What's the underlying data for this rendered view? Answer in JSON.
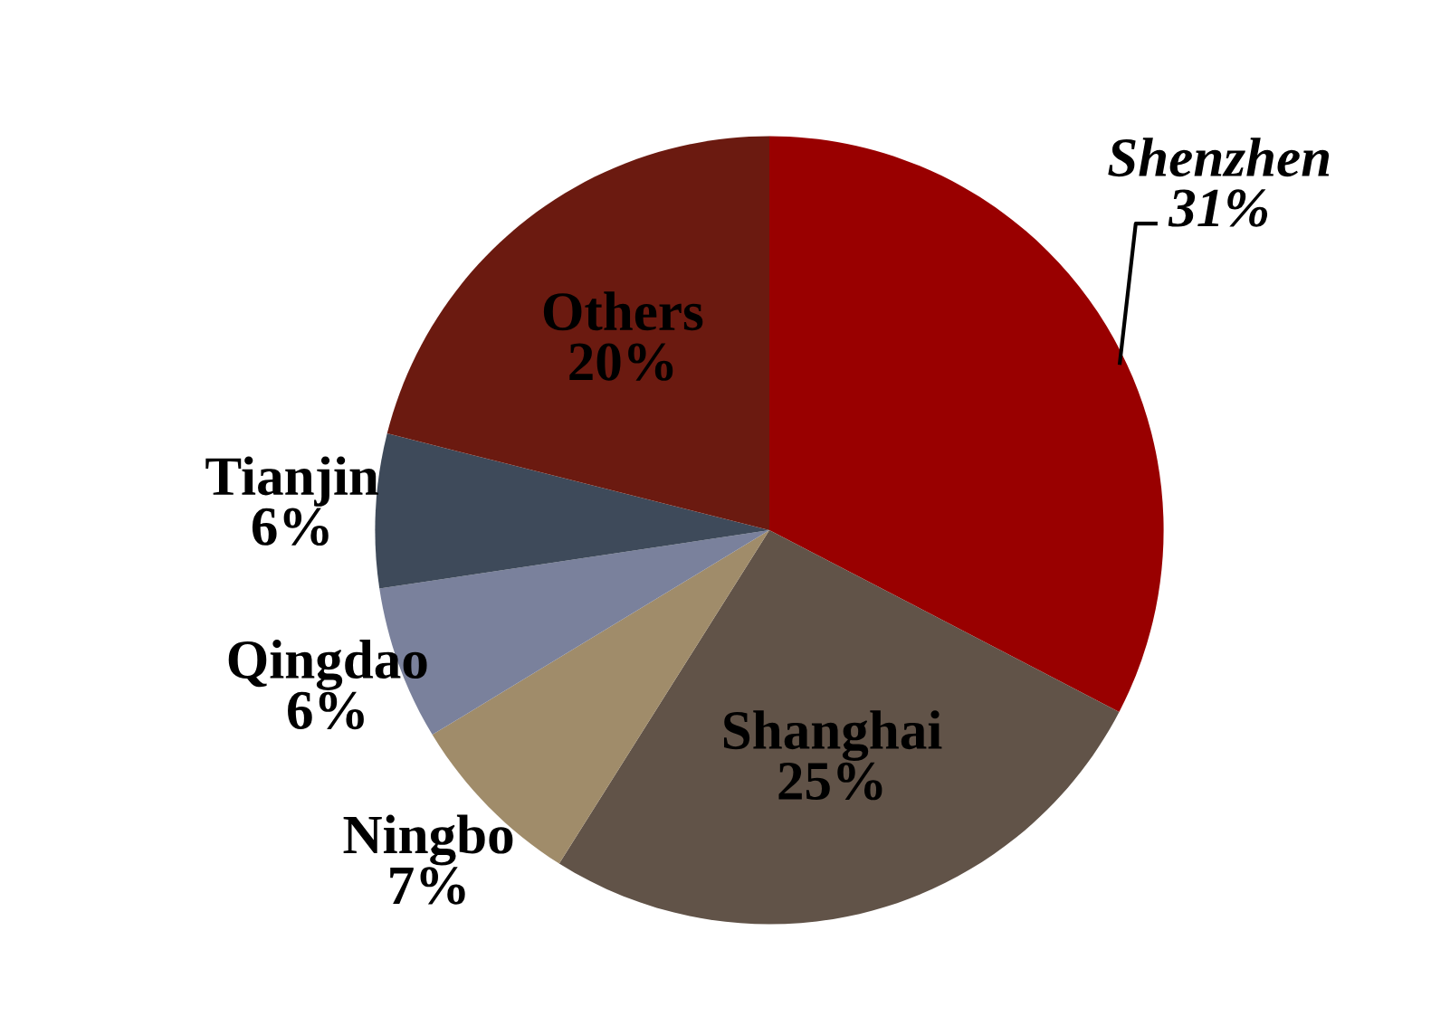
{
  "chart_data": {
    "type": "pie",
    "categories": [
      "Shenzhen",
      "Shanghai",
      "Ningbo",
      "Qingdao",
      "Tianjin",
      "Others"
    ],
    "values": [
      31,
      25,
      7,
      6,
      6,
      20
    ],
    "value_labels": [
      "31%",
      "25%",
      "7%",
      "6%",
      "6%",
      "20%"
    ],
    "colors": [
      "#990000",
      "#615348",
      "#a08c6a",
      "#7a819c",
      "#3e4a5a",
      "#6b1a10"
    ],
    "legend": false
  }
}
